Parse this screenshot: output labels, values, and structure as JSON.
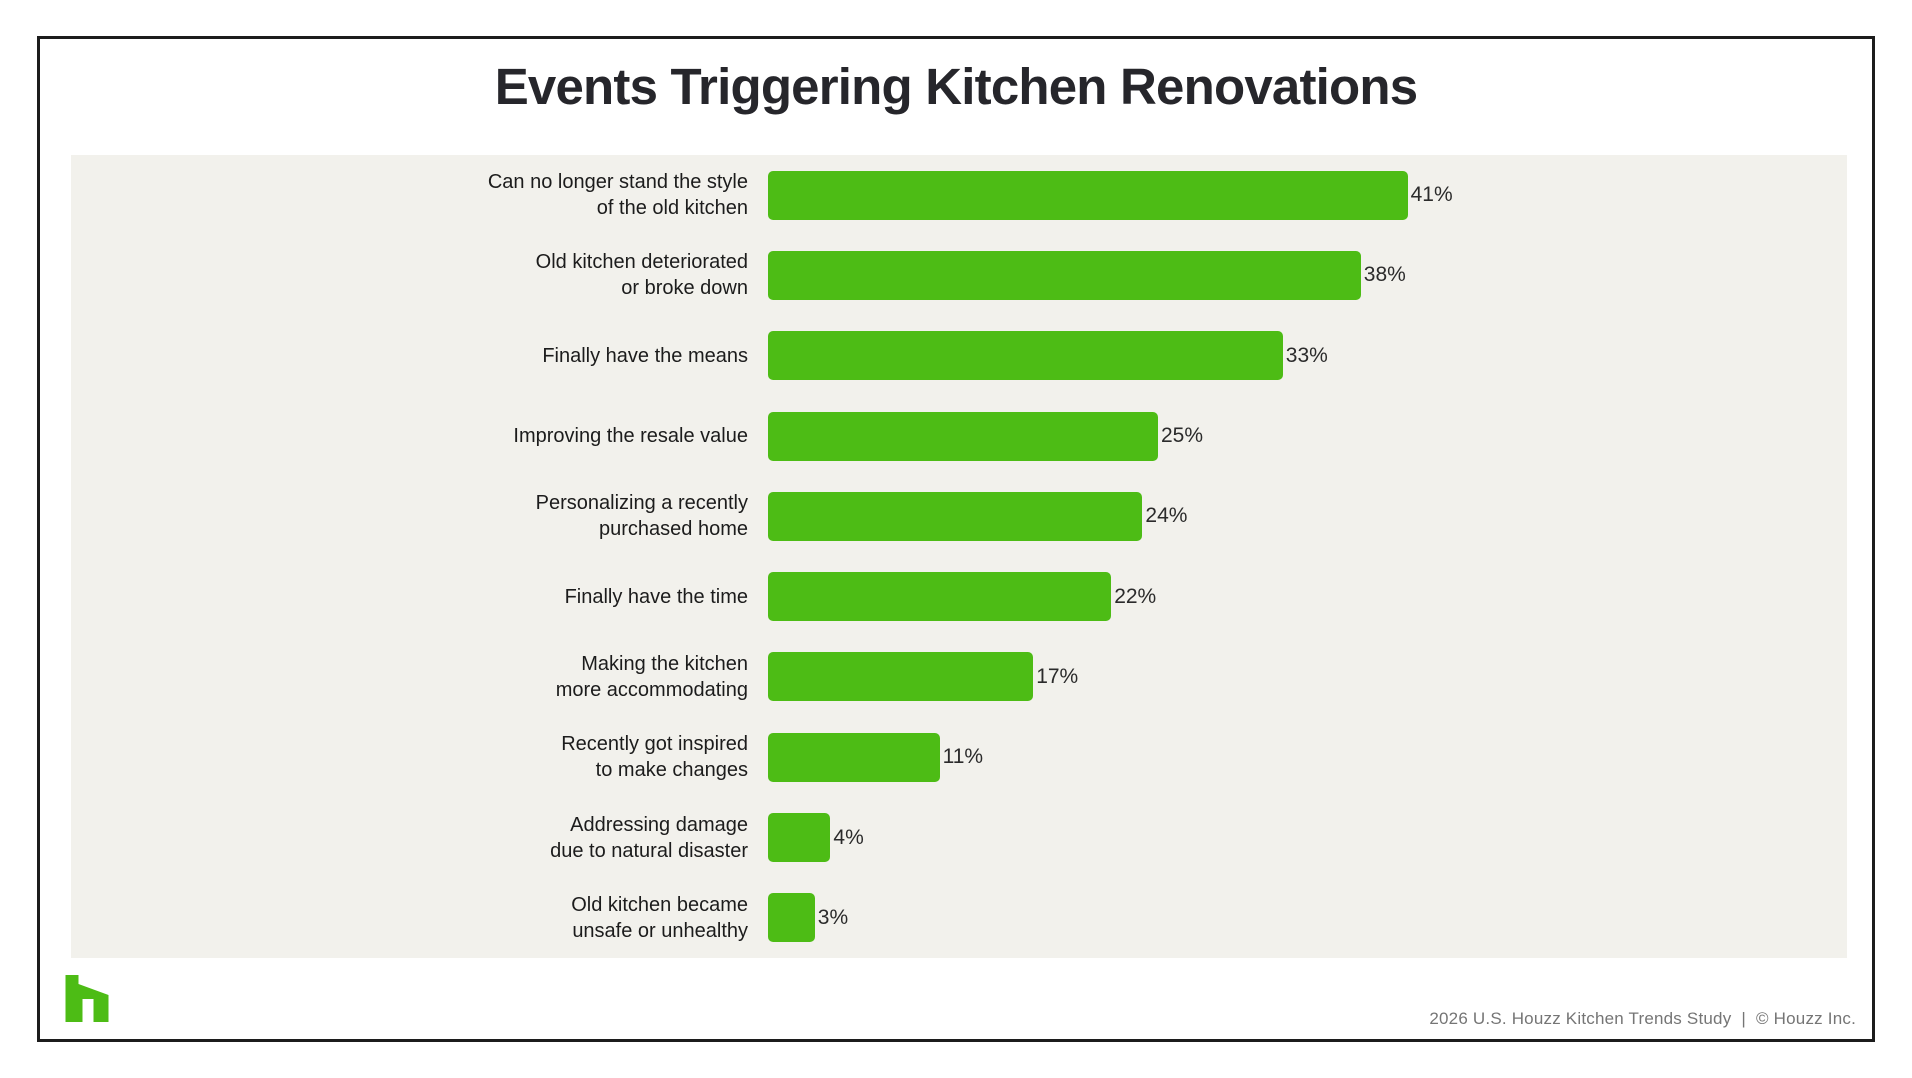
{
  "header": {
    "title": "Events Triggering Kitchen Renovations"
  },
  "chart_data": {
    "type": "bar",
    "orientation": "horizontal",
    "title": "Events Triggering Kitchen Renovations",
    "categories": [
      "Can no longer stand the style\nof the old kitchen",
      "Old kitchen deteriorated\nor broke down",
      "Finally have the means",
      "Improving the resale value",
      "Personalizing a recently\npurchased home",
      "Finally have the time",
      "Making the kitchen\nmore accommodating",
      "Recently got inspired\nto make changes",
      "Addressing damage\ndue to natural disaster",
      "Old kitchen became\nunsafe or unhealthy"
    ],
    "values": [
      41,
      38,
      33,
      25,
      24,
      22,
      17,
      11,
      4,
      3
    ],
    "value_labels": [
      "41%",
      "38%",
      "33%",
      "25%",
      "24%",
      "22%",
      "17%",
      "11%",
      "4%",
      "3%"
    ],
    "unit": "%",
    "xlim": [
      0,
      45
    ],
    "grid": false,
    "legend": false,
    "data_labels_position": "right-of-bar"
  },
  "footer": {
    "source": "2026 U.S. Houzz Kitchen Trends Study",
    "separator": "|",
    "copyright": "© Houzz Inc."
  },
  "icons": {
    "logo": "houzz-logo-icon"
  },
  "colors": {
    "bar_green": "#4dbc15",
    "panel_background": "#f2f1ec",
    "card_border": "#1c1c1c",
    "title_text": "#26262b",
    "label_text": "#1c1c1c",
    "footer_text": "#757575",
    "logo_green": "#4dbc15"
  }
}
